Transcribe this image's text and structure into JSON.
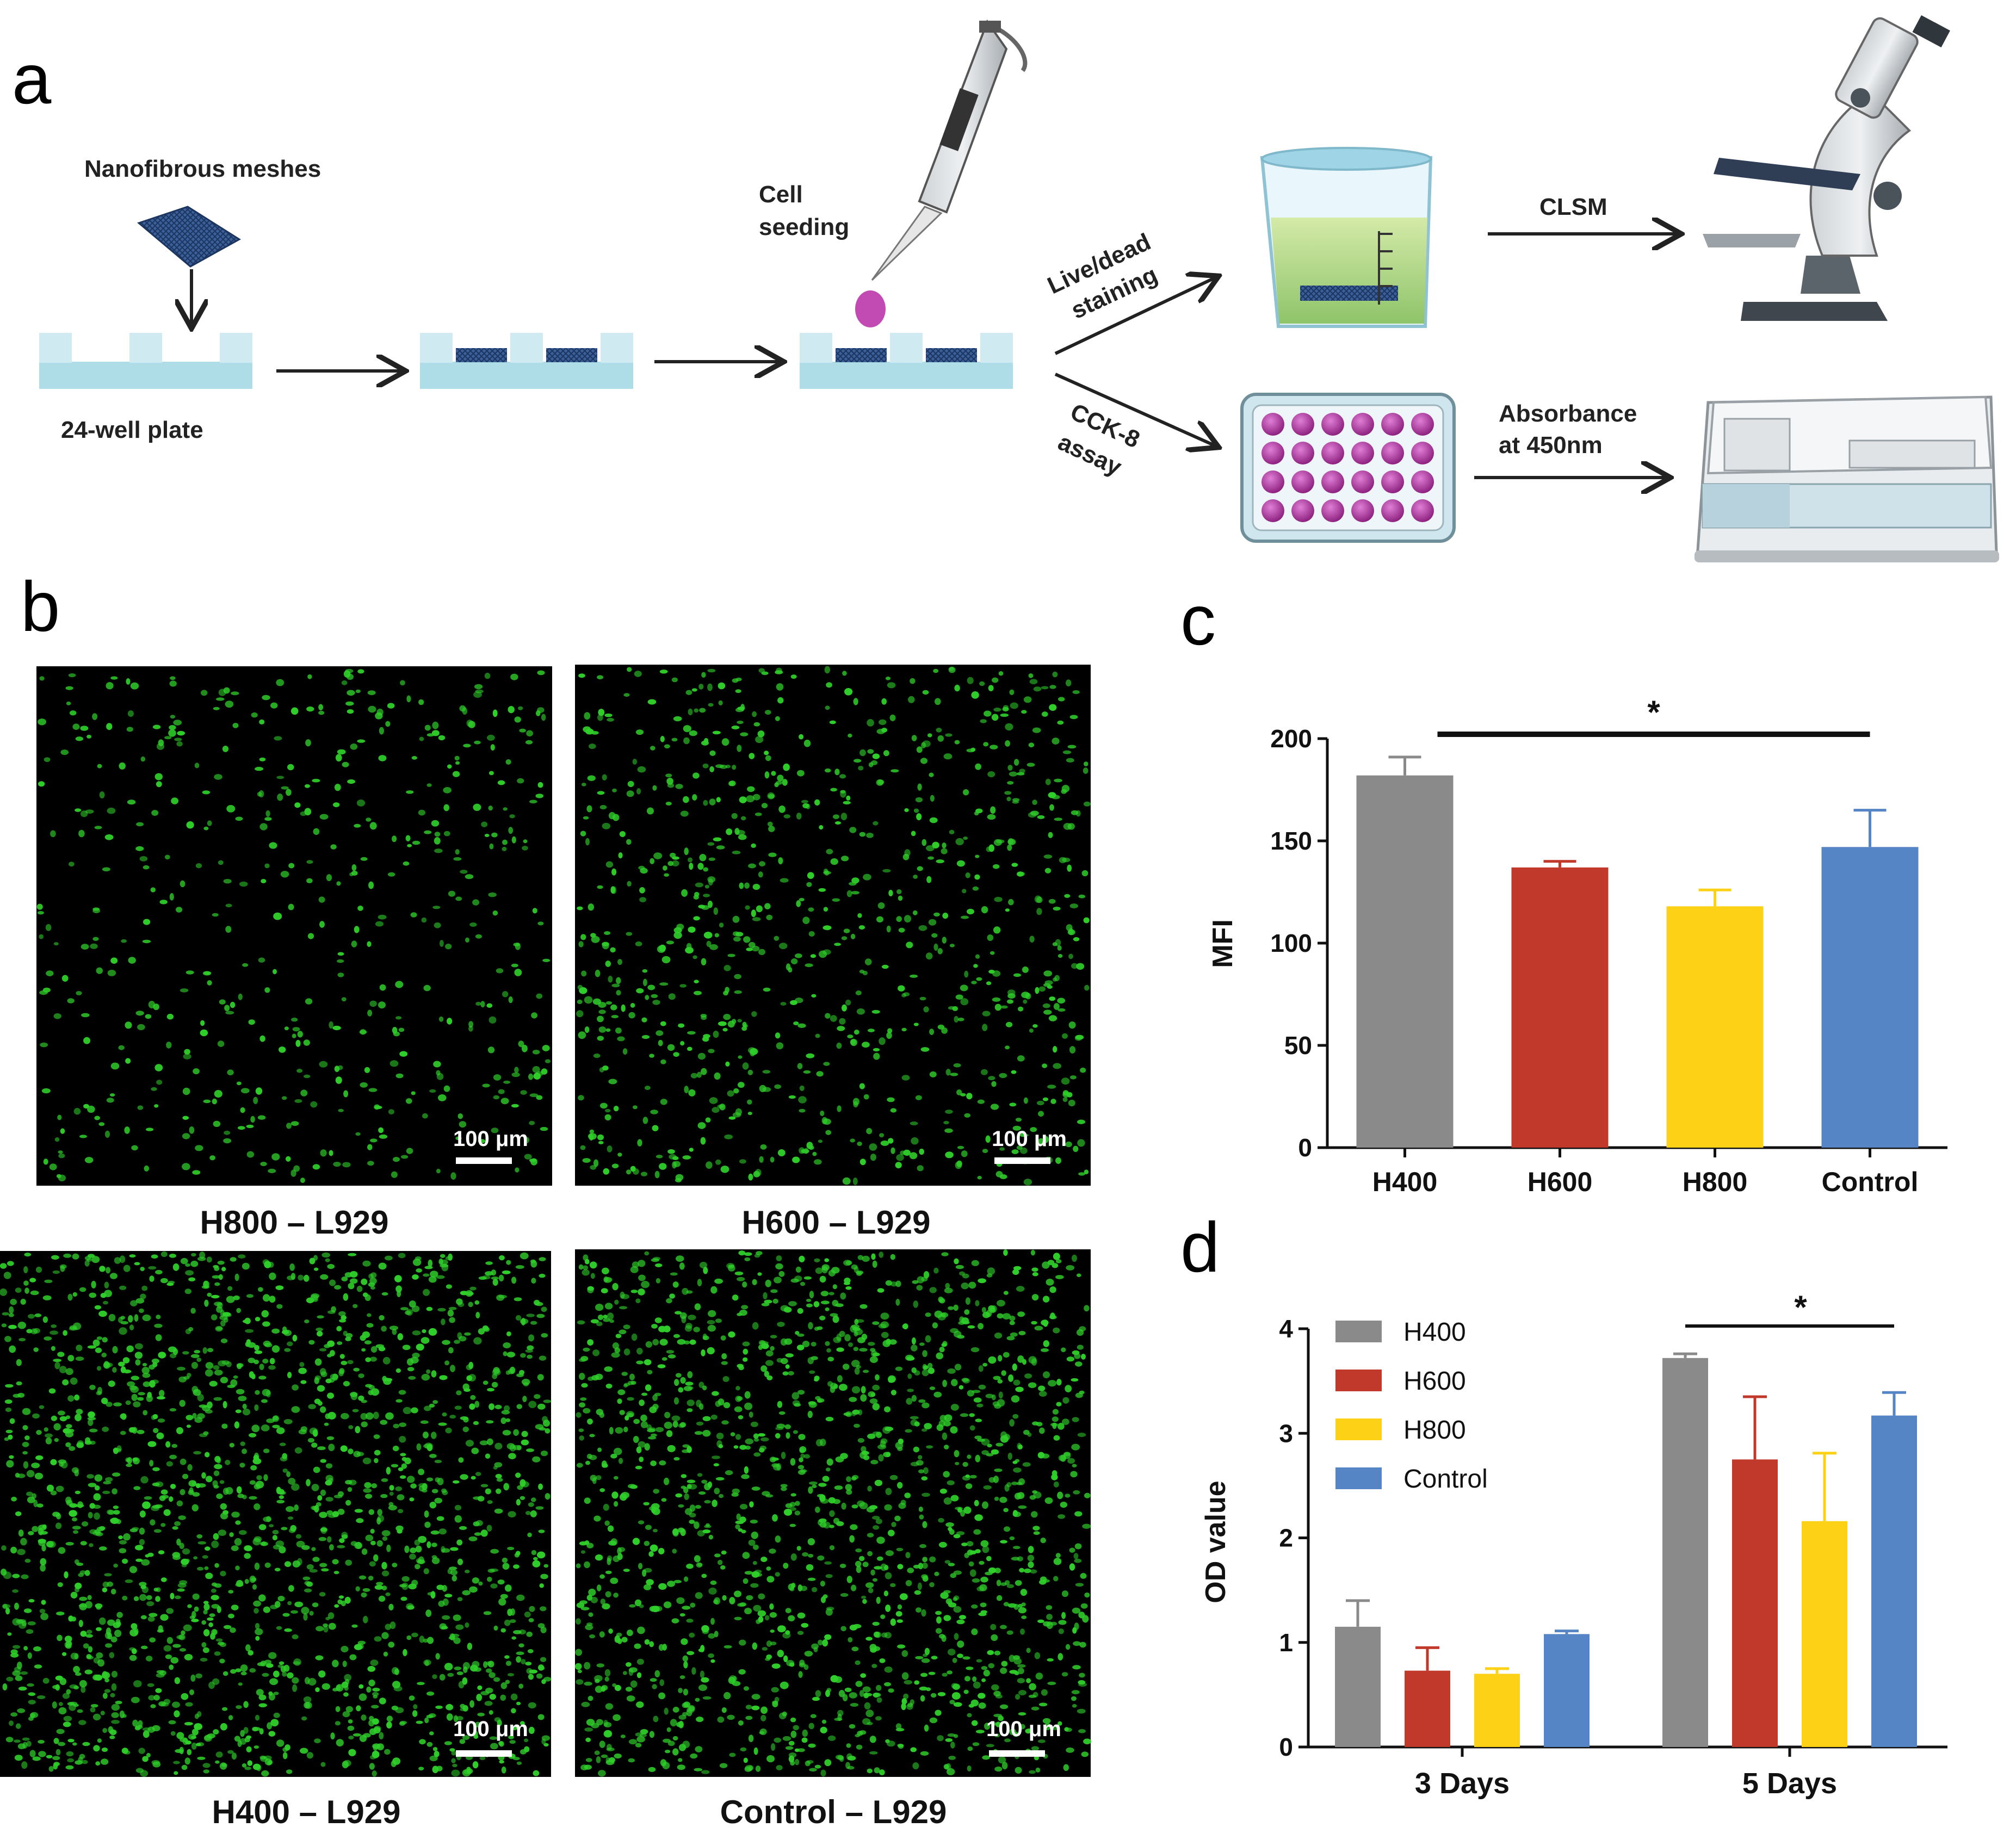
{
  "panel_a": {
    "letter": "a",
    "labels": {
      "meshes": "Nanofibrous  meshes",
      "plate": "24-well  plate",
      "cell": "Cell",
      "seeding": "seeding",
      "live": "Live/dead",
      "staining": "staining",
      "cck": "CCK-8",
      "assay": "assay",
      "clsm": "CLSM",
      "abs1": "Absorbance",
      "abs2": "at 450nm"
    },
    "colors": {
      "well": "#aedde8",
      "mesh": "#2d4f86",
      "cell_drop": "#c14bb3",
      "well_dye": "#a7329b",
      "beaker_liquid": "#b9d98a"
    }
  },
  "panel_b": {
    "letter": "b",
    "scale_bar": "100 μm",
    "images": [
      {
        "caption": "H800 – L929",
        "density": 0.2
      },
      {
        "caption": "H600 – L929",
        "density": 0.35
      },
      {
        "caption": "H400 – L929",
        "density": 0.75
      },
      {
        "caption": "Control – L929",
        "density": 0.65
      }
    ],
    "colors": {
      "cell": "#2fcf2a",
      "background": "#000000"
    }
  },
  "chart_data": [
    {
      "letter": "c",
      "type": "bar",
      "categories": [
        "H400",
        "H600",
        "H800",
        "Control"
      ],
      "values": [
        182,
        137,
        118,
        147
      ],
      "errors": [
        9,
        3,
        8,
        18
      ],
      "colors": [
        "#8a8a8a",
        "#c0392b",
        "#fcd116",
        "#5585c5"
      ],
      "ylabel": "MFI",
      "ylim": [
        0,
        200
      ],
      "yticks": [
        0,
        50,
        100,
        150,
        200
      ],
      "significance": {
        "from": "H400",
        "to": "Control",
        "label": "*"
      }
    },
    {
      "letter": "d",
      "type": "bar",
      "categories": [
        "3 Days",
        "5 Days"
      ],
      "series": [
        {
          "name": "H400",
          "values": [
            1.15,
            3.72
          ],
          "errors": [
            0.25,
            0.04
          ],
          "color": "#8a8a8a"
        },
        {
          "name": "H600",
          "values": [
            0.73,
            2.75
          ],
          "errors": [
            0.22,
            0.6
          ],
          "color": "#c0392b"
        },
        {
          "name": "H800",
          "values": [
            0.7,
            2.16
          ],
          "errors": [
            0.05,
            0.65
          ],
          "color": "#fcd116"
        },
        {
          "name": "Control",
          "values": [
            1.08,
            3.17
          ],
          "errors": [
            0.03,
            0.22
          ],
          "color": "#5585c5"
        }
      ],
      "ylabel": "OD value",
      "ylim": [
        0,
        4
      ],
      "yticks": [
        0,
        1,
        2,
        3,
        4
      ],
      "legend": "top-left",
      "significance": {
        "group": "5 Days",
        "from": "H400",
        "to": "Control",
        "label": "*"
      }
    }
  ]
}
